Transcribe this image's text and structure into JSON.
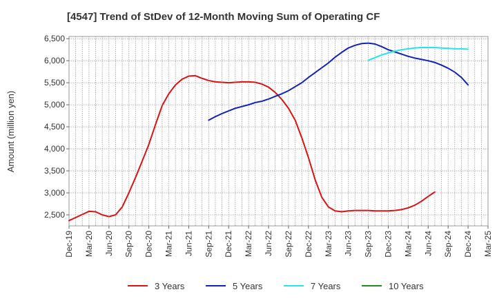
{
  "chart_data": {
    "type": "line",
    "title": "[4547]  Trend of StDev of 12-Month Moving Sum of Operating CF",
    "xlabel": "",
    "ylabel": "Amount (million yen)",
    "ylim": [
      2250,
      6550
    ],
    "yticks": [
      2500,
      3000,
      3500,
      4000,
      4500,
      5000,
      5500,
      6000,
      6500
    ],
    "ytick_labels": [
      "2,500",
      "3,000",
      "3,500",
      "4,000",
      "4,500",
      "5,000",
      "5,500",
      "6,000",
      "6,500"
    ],
    "x_labels": [
      "Dec-19",
      "Mar-20",
      "Jun-20",
      "Sep-20",
      "Dec-20",
      "Mar-21",
      "Jun-21",
      "Sep-21",
      "Dec-21",
      "Mar-22",
      "Jun-22",
      "Sep-22",
      "Dec-22",
      "Mar-23",
      "Jun-23",
      "Sep-23",
      "Dec-23",
      "Mar-24",
      "Jun-24",
      "Sep-24",
      "Dec-24",
      "Mar-25"
    ],
    "grid": true,
    "legend_position": "bottom",
    "series": [
      {
        "name": "3 Years",
        "color": "#dd1111",
        "start_index": 0,
        "values": [
          2370,
          2440,
          2510,
          2580,
          2570,
          2500,
          2460,
          2500,
          2680,
          3000,
          3350,
          3720,
          4100,
          4550,
          4980,
          5250,
          5450,
          5580,
          5650,
          5660,
          5600,
          5550,
          5520,
          5510,
          5500,
          5510,
          5520,
          5520,
          5510,
          5470,
          5400,
          5280,
          5120,
          4920,
          4650,
          4250,
          3800,
          3300,
          2900,
          2680,
          2590,
          2570,
          2590,
          2600,
          2600,
          2600,
          2590,
          2590,
          2590,
          2600,
          2620,
          2660,
          2720,
          2810,
          2920,
          3020
        ]
      },
      {
        "name": "5 Years",
        "color": "#1122bb",
        "start_index": 21,
        "values": [
          4650,
          4730,
          4800,
          4860,
          4920,
          4960,
          5000,
          5050,
          5080,
          5130,
          5190,
          5250,
          5320,
          5410,
          5500,
          5620,
          5730,
          5840,
          5950,
          6080,
          6190,
          6290,
          6350,
          6390,
          6400,
          6380,
          6320,
          6250,
          6200,
          6150,
          6100,
          6060,
          6030,
          6000,
          5960,
          5900,
          5830,
          5740,
          5620,
          5450
        ]
      },
      {
        "name": "7 Years",
        "color": "#22e5ee",
        "start_index": 45,
        "values": [
          6010,
          6070,
          6130,
          6180,
          6220,
          6250,
          6270,
          6290,
          6300,
          6300,
          6300,
          6290,
          6280,
          6270,
          6270,
          6260
        ]
      },
      {
        "name": "10 Years",
        "color": "#228822",
        "start_index": 0,
        "values": []
      }
    ]
  }
}
